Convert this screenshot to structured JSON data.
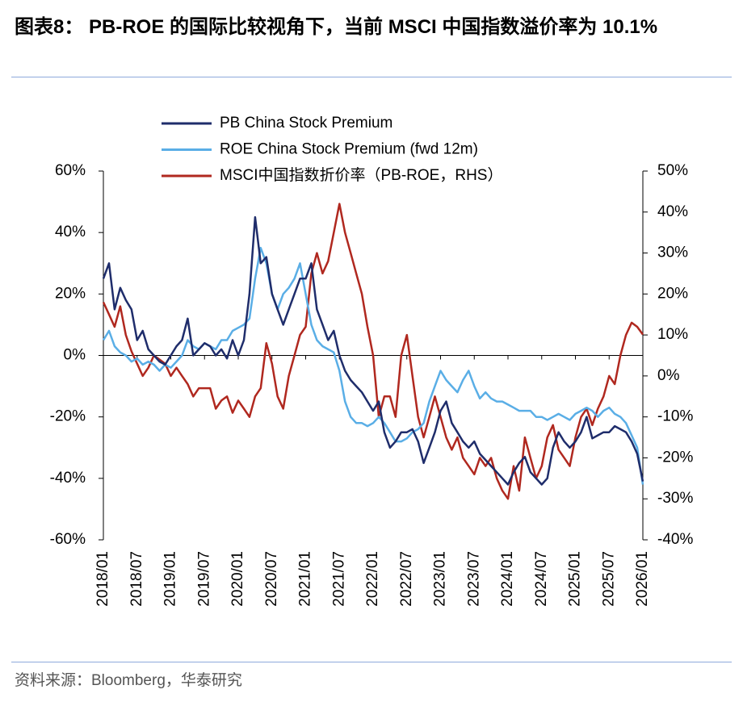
{
  "chart_data": {
    "type": "line",
    "title": "图表8： PB-ROE 的国际比较视角下，当前 MSCI 中国指数溢价率为 10.1%",
    "source": "资料来源：Bloomberg，华泰研究",
    "x": [
      "2018/01",
      "2018/02",
      "2018/03",
      "2018/04",
      "2018/05",
      "2018/06",
      "2018/07",
      "2018/08",
      "2018/09",
      "2018/10",
      "2018/11",
      "2018/12",
      "2019/01",
      "2019/02",
      "2019/03",
      "2019/04",
      "2019/05",
      "2019/06",
      "2019/07",
      "2019/08",
      "2019/09",
      "2019/10",
      "2019/11",
      "2019/12",
      "2020/01",
      "2020/02",
      "2020/03",
      "2020/04",
      "2020/05",
      "2020/06",
      "2020/07",
      "2020/08",
      "2020/09",
      "2020/10",
      "2020/11",
      "2020/12",
      "2021/01",
      "2021/02",
      "2021/03",
      "2021/04",
      "2021/05",
      "2021/06",
      "2021/07",
      "2021/08",
      "2021/09",
      "2021/10",
      "2021/11",
      "2021/12",
      "2022/01",
      "2022/02",
      "2022/03",
      "2022/04",
      "2022/05",
      "2022/06",
      "2022/07",
      "2022/08",
      "2022/09",
      "2022/10",
      "2022/11",
      "2022/12",
      "2023/01",
      "2023/02",
      "2023/03",
      "2023/04",
      "2023/05",
      "2023/06",
      "2023/07",
      "2023/08",
      "2023/09",
      "2023/10",
      "2023/11",
      "2023/12",
      "2024/01",
      "2024/02",
      "2024/03",
      "2024/04",
      "2024/05",
      "2024/06",
      "2024/07",
      "2024/08",
      "2024/09",
      "2024/10",
      "2024/11",
      "2024/12",
      "2025/01",
      "2025/02",
      "2025/03",
      "2025/04",
      "2025/05",
      "2025/06",
      "2025/07",
      "2025/08",
      "2025/09",
      "2025/10",
      "2025/11",
      "2025/12",
      "2026/01"
    ],
    "series": [
      {
        "name": "PB China Stock Premium",
        "color": "#1f2d6b",
        "axis": "y",
        "values": [
          25,
          30,
          15,
          22,
          18,
          15,
          5,
          8,
          2,
          0,
          -2,
          -3,
          0,
          3,
          5,
          12,
          0,
          2,
          4,
          3,
          0,
          2,
          -1,
          5,
          0,
          5,
          20,
          45,
          30,
          32,
          20,
          15,
          10,
          15,
          20,
          25,
          25,
          30,
          15,
          10,
          5,
          8,
          0,
          -5,
          -8,
          -10,
          -12,
          -15,
          -18,
          -15,
          -25,
          -30,
          -28,
          -25,
          -25,
          -24,
          -28,
          -35,
          -30,
          -25,
          -18,
          -15,
          -22,
          -25,
          -28,
          -30,
          -28,
          -32,
          -34,
          -36,
          -38,
          -40,
          -42,
          -38,
          -35,
          -33,
          -38,
          -40,
          -42,
          -40,
          -30,
          -25,
          -28,
          -30,
          -28,
          -25,
          -20,
          -27,
          -26,
          -25,
          -25,
          -23,
          -24,
          -25,
          -28,
          -32,
          -41
        ]
      },
      {
        "name": "ROE China Stock Premium (fwd 12m)",
        "color": "#5aaee6",
        "axis": "y",
        "values": [
          5,
          8,
          3,
          1,
          0,
          -2,
          -1,
          -3,
          -2,
          -3,
          -5,
          -3,
          -4,
          -2,
          0,
          5,
          3,
          2,
          4,
          3,
          2,
          5,
          5,
          8,
          9,
          10,
          12,
          25,
          35,
          30,
          20,
          15,
          20,
          22,
          25,
          30,
          20,
          10,
          5,
          3,
          2,
          1,
          -5,
          -15,
          -20,
          -22,
          -22,
          -23,
          -22,
          -20,
          -22,
          -25,
          -28,
          -28,
          -27,
          -25,
          -24,
          -22,
          -15,
          -10,
          -5,
          -8,
          -10,
          -12,
          -8,
          -5,
          -10,
          -14,
          -12,
          -14,
          -15,
          -15,
          -16,
          -17,
          -18,
          -18,
          -18,
          -20,
          -20,
          -21,
          -20,
          -19,
          -20,
          -21,
          -19,
          -18,
          -17,
          -18,
          -20,
          -18,
          -17,
          -19,
          -20,
          -22,
          -26,
          -30,
          -42
        ]
      },
      {
        "name": "MSCI中国指数折价率（PB-ROE，RHS）",
        "color": "#b0281f",
        "axis": "y2",
        "values": [
          18,
          15,
          12,
          17,
          10,
          6,
          3,
          0,
          2,
          5,
          4,
          3,
          0,
          2,
          0,
          -2,
          -5,
          -3,
          -3,
          -3,
          -8,
          -6,
          -5,
          -9,
          -6,
          -8,
          -10,
          -5,
          -3,
          8,
          3,
          -5,
          -8,
          0,
          5,
          10,
          12,
          25,
          30,
          25,
          28,
          35,
          42,
          35,
          30,
          25,
          20,
          12,
          5,
          -10,
          -5,
          -5,
          -10,
          5,
          10,
          0,
          -10,
          -15,
          -10,
          -5,
          -10,
          -15,
          -18,
          -15,
          -20,
          -22,
          -24,
          -20,
          -22,
          -20,
          -25,
          -28,
          -30,
          -22,
          -28,
          -15,
          -20,
          -25,
          -22,
          -15,
          -12,
          -18,
          -20,
          -22,
          -15,
          -10,
          -8,
          -12,
          -8,
          -5,
          0,
          -2,
          5,
          10,
          13,
          12,
          10.1
        ]
      }
    ],
    "ylim": [
      -60,
      60
    ],
    "yticks": [
      {
        "value": -60,
        "label": "-60%"
      },
      {
        "value": -40,
        "label": "-40%"
      },
      {
        "value": -20,
        "label": "-20%"
      },
      {
        "value": 0,
        "label": "0%"
      },
      {
        "value": 20,
        "label": "20%"
      },
      {
        "value": 40,
        "label": "40%"
      },
      {
        "value": 60,
        "label": "60%"
      }
    ],
    "y2lim": [
      -40,
      50
    ],
    "y2ticks": [
      {
        "value": -40,
        "label": "-40%"
      },
      {
        "value": -30,
        "label": "-30%"
      },
      {
        "value": -20,
        "label": "-20%"
      },
      {
        "value": -10,
        "label": "-10%"
      },
      {
        "value": 0,
        "label": "0%"
      },
      {
        "value": 10,
        "label": "10%"
      },
      {
        "value": 20,
        "label": "20%"
      },
      {
        "value": 30,
        "label": "30%"
      },
      {
        "value": 40,
        "label": "40%"
      },
      {
        "value": 50,
        "label": "50%"
      }
    ],
    "legend": "top-center"
  }
}
